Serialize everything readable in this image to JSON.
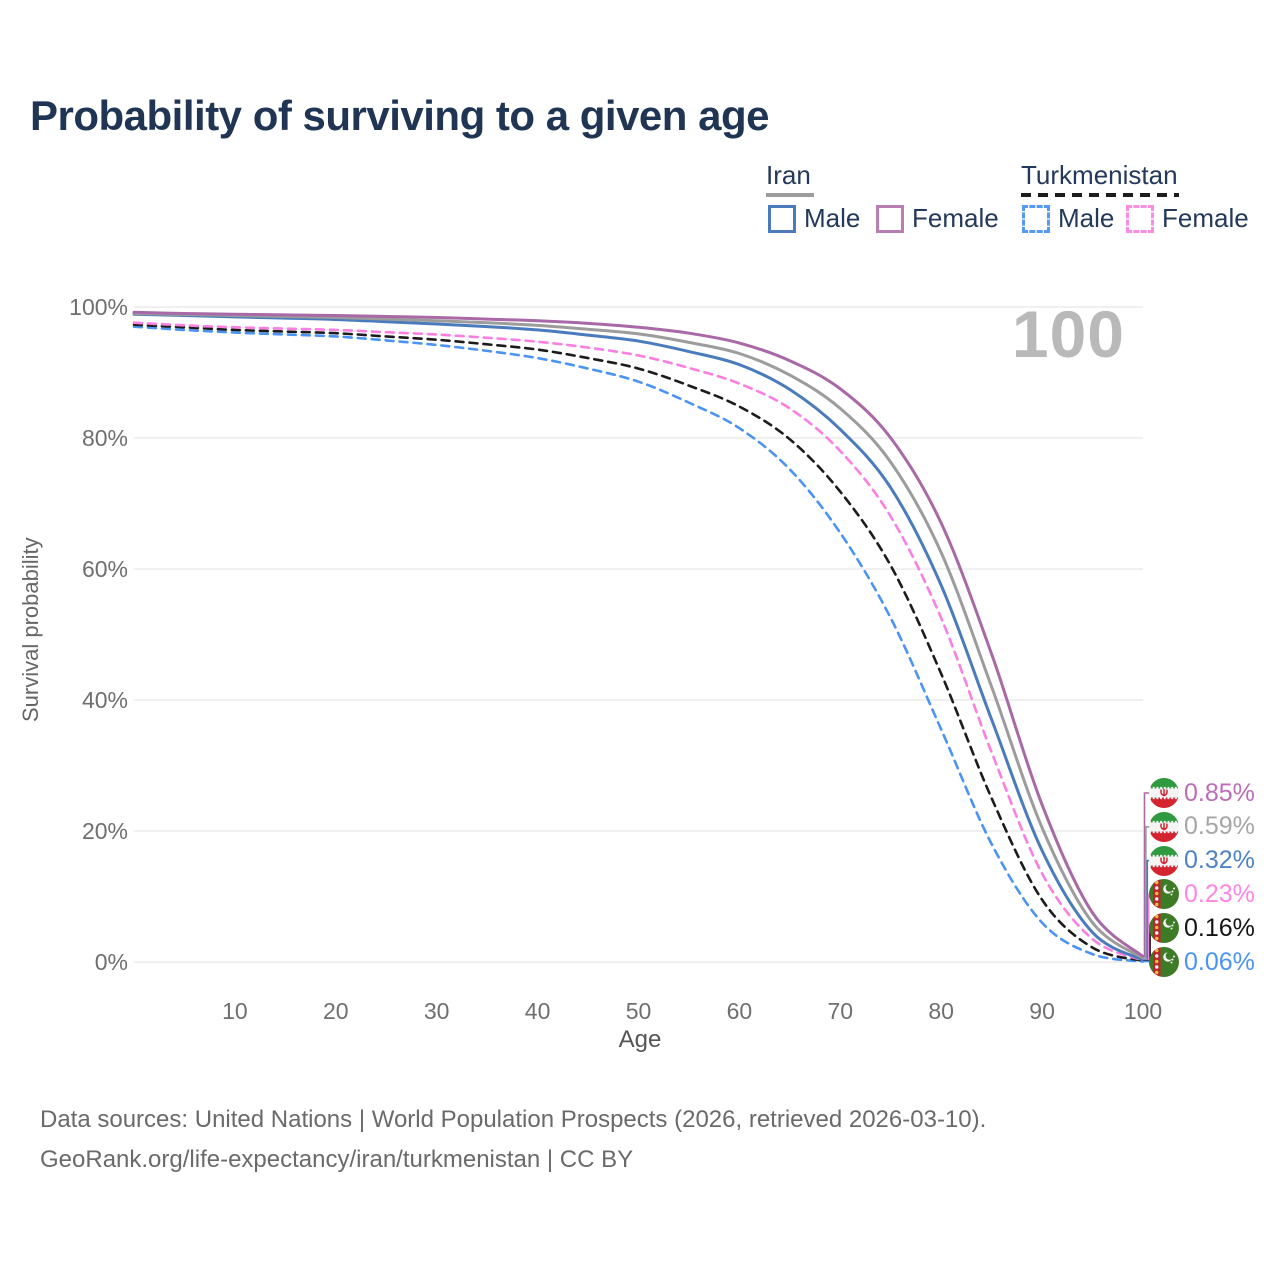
{
  "title": "Probability of surviving to a given age",
  "hover_age_watermark": "100",
  "legend": {
    "groups": [
      {
        "name": "Iran",
        "line_style": "solid",
        "line_color": "#9c9c9c",
        "items": [
          {
            "label": "Male",
            "color": "#4a7cbd"
          },
          {
            "label": "Female",
            "color": "#b77fb4"
          }
        ]
      },
      {
        "name": "Turkmenistan",
        "line_style": "dashed",
        "line_color": "#1c1c1c",
        "items": [
          {
            "label": "Male",
            "color": "#5598f5"
          },
          {
            "label": "Female",
            "color": "#ff8ce4"
          }
        ]
      }
    ]
  },
  "y_axis": {
    "label": "Survival probability",
    "ticks": [
      "100%",
      "80%",
      "60%",
      "40%",
      "20%",
      "0%"
    ]
  },
  "x_axis": {
    "label": "Age",
    "ticks": [
      "10",
      "20",
      "30",
      "40",
      "50",
      "60",
      "70",
      "80",
      "90",
      "100"
    ]
  },
  "end_labels": [
    {
      "text": "0.85%",
      "value_pct": 0.85,
      "series": "Iran Female",
      "flag": "iran",
      "color": "#bd6cb6",
      "line_color": "#a869a6"
    },
    {
      "text": "0.59%",
      "value_pct": 0.59,
      "series": "Iran Both sexes",
      "flag": "iran",
      "color": "#a6a6a6",
      "line_color": "#9c9c9c"
    },
    {
      "text": "0.32%",
      "value_pct": 0.32,
      "series": "Iran Male",
      "flag": "iran",
      "color": "#4e82c4",
      "line_color": "#4a7cbd"
    },
    {
      "text": "0.23%",
      "value_pct": 0.23,
      "series": "Turkmenistan Female",
      "flag": "turkmenistan",
      "color": "#ff85e6",
      "line_color": "#fb7fe1"
    },
    {
      "text": "0.16%",
      "value_pct": 0.16,
      "series": "Turkmenistan Both sexes",
      "flag": "turkmenistan",
      "color": "#141414",
      "line_color": "#1c1c1c"
    },
    {
      "text": "0.06%",
      "value_pct": 0.06,
      "series": "Turkmenistan Male",
      "flag": "turkmenistan",
      "color": "#4b94f3",
      "line_color": "#4b94f3"
    }
  ],
  "footer": {
    "line1": "Data sources: United Nations | World Population Prospects (2026, retrieved 2026-03-10).",
    "line2": "GeoRank.org/life-expectancy/iran/turkmenistan | CC BY"
  },
  "chart_data": {
    "type": "line",
    "title": "Probability of surviving to a given age",
    "xlabel": "Age",
    "ylabel": "Survival probability",
    "xlim": [
      0,
      100
    ],
    "ylim": [
      0,
      100
    ],
    "grid": "horizontal",
    "legend_position": "top-right",
    "x": [
      0,
      5,
      10,
      15,
      20,
      25,
      30,
      35,
      40,
      45,
      50,
      55,
      60,
      65,
      70,
      75,
      80,
      85,
      90,
      95,
      100
    ],
    "series": [
      {
        "name": "Turkmenistan Male",
        "country": "Turkmenistan",
        "sex": "Male",
        "style": "dashed",
        "color": "#4b94f3",
        "values": [
          97.0,
          96.5,
          96.1,
          95.8,
          95.5,
          94.9,
          94.2,
          93.3,
          92.2,
          90.6,
          88.6,
          85.4,
          81.5,
          75.2,
          65.5,
          52.5,
          35.5,
          18.0,
          6.0,
          1.2,
          0.06
        ]
      },
      {
        "name": "Turkmenistan Both sexes",
        "country": "Turkmenistan",
        "sex": "Both",
        "style": "dashed",
        "color": "#1c1c1c",
        "values": [
          97.3,
          96.9,
          96.5,
          96.25,
          96.0,
          95.5,
          95.0,
          94.3,
          93.5,
          92.2,
          90.6,
          88.0,
          84.8,
          79.8,
          71.8,
          60.5,
          44.0,
          25.0,
          9.5,
          2.2,
          0.16
        ]
      },
      {
        "name": "Turkmenistan Female",
        "country": "Turkmenistan",
        "sex": "Female",
        "style": "dashed",
        "color": "#fb7fe1",
        "values": [
          97.6,
          97.2,
          96.9,
          96.7,
          96.5,
          96.15,
          95.8,
          95.3,
          94.7,
          93.8,
          92.6,
          90.7,
          88.3,
          84.5,
          78.0,
          68.0,
          52.5,
          32.0,
          13.5,
          3.5,
          0.23
        ]
      },
      {
        "name": "Iran Male",
        "country": "Iran",
        "sex": "Male",
        "style": "solid",
        "color": "#4a7cbd",
        "values": [
          98.9,
          98.7,
          98.5,
          98.3,
          98.1,
          97.75,
          97.4,
          97.0,
          96.5,
          95.7,
          94.8,
          93.2,
          91.2,
          87.4,
          81.3,
          72.4,
          57.5,
          37.0,
          17.0,
          4.5,
          0.32
        ]
      },
      {
        "name": "Iran Both sexes",
        "country": "Iran",
        "sex": "Both",
        "style": "solid",
        "color": "#9c9c9c",
        "values": [
          99.0,
          98.85,
          98.7,
          98.55,
          98.4,
          98.15,
          97.9,
          97.6,
          97.2,
          96.6,
          95.9,
          94.6,
          92.9,
          89.6,
          84.5,
          76.3,
          62.5,
          42.0,
          20.5,
          6.0,
          0.59
        ]
      },
      {
        "name": "Iran Female",
        "country": "Iran",
        "sex": "Female",
        "style": "solid",
        "color": "#a869a6",
        "values": [
          99.2,
          99.0,
          98.9,
          98.8,
          98.7,
          98.55,
          98.4,
          98.15,
          97.9,
          97.5,
          96.9,
          96.0,
          94.5,
          91.8,
          87.5,
          80.0,
          67.0,
          47.0,
          24.0,
          7.5,
          0.85
        ]
      }
    ]
  }
}
